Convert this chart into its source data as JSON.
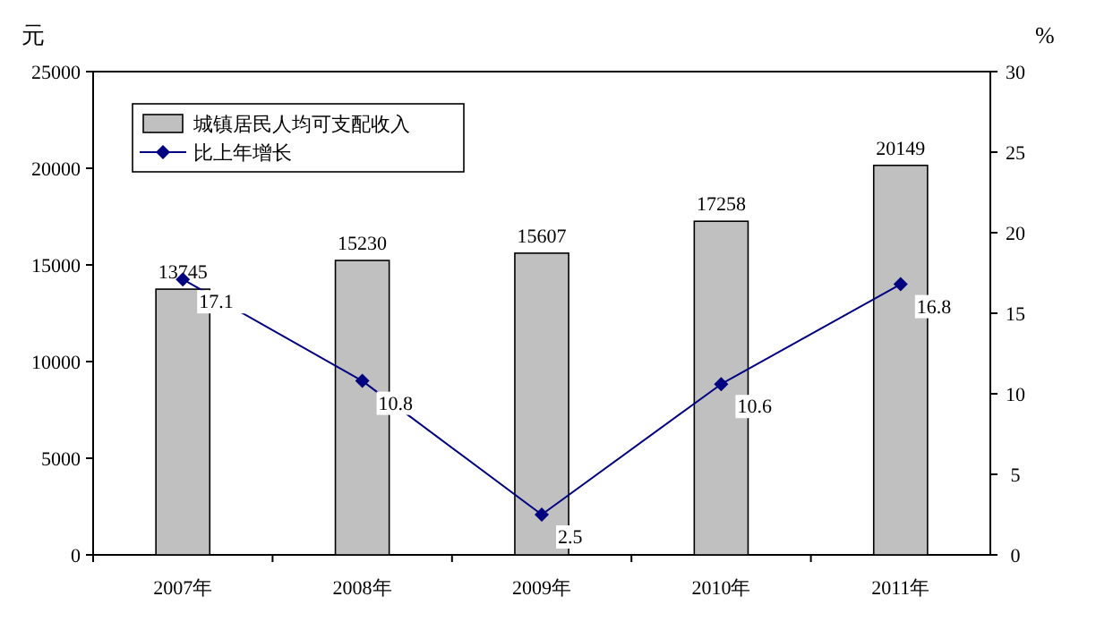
{
  "chart_data": {
    "type": "bar",
    "categories": [
      "2007年",
      "2008年",
      "2009年",
      "2010年",
      "2011年"
    ],
    "series": [
      {
        "name": "城镇居民人均可支配收入",
        "color": "#c0c0c0",
        "values": [
          13745,
          15230,
          15607,
          17258,
          20149
        ]
      },
      {
        "name": "比上年增长",
        "type": "line",
        "axis": "y2",
        "color": "#000080",
        "values": [
          17.1,
          10.8,
          2.5,
          10.6,
          16.8
        ]
      }
    ],
    "ylim": [
      0,
      25000
    ],
    "yticks": [
      0,
      5000,
      10000,
      15000,
      20000,
      25000
    ],
    "y2lim": [
      0,
      30
    ],
    "y2ticks": [
      0,
      5,
      10,
      15,
      20,
      25,
      30
    ],
    "ylabel": "元",
    "y2label": "%",
    "legend": "top left",
    "marker": "diamond",
    "data_labels": true
  }
}
